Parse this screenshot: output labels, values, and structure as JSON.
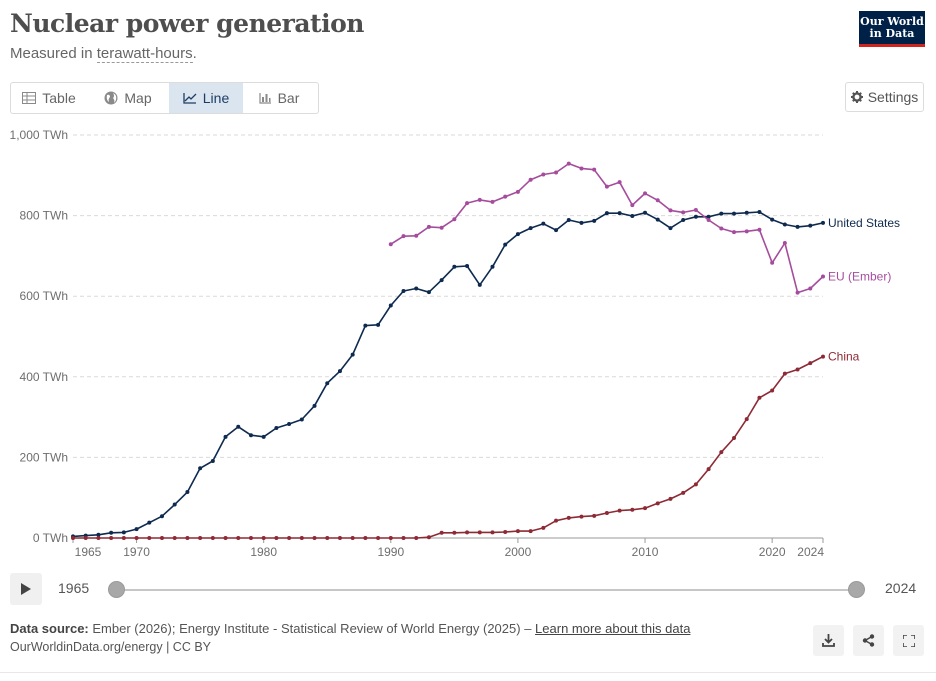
{
  "header": {
    "title": "Nuclear power generation",
    "subtitle_prefix": "Measured in ",
    "subtitle_unit": "terawatt-hours",
    "subtitle_suffix": ".",
    "logo_line1": "Our World",
    "logo_line2": "in Data"
  },
  "tabs": [
    {
      "label": "Table",
      "icon": "table-icon"
    },
    {
      "label": "Map",
      "icon": "globe-icon"
    },
    {
      "label": "Line",
      "icon": "line-chart-icon",
      "active": true
    },
    {
      "label": "Bar",
      "icon": "bar-chart-icon"
    }
  ],
  "settings_label": "Settings",
  "timeline": {
    "start_label": "1965",
    "end_label": "2024"
  },
  "footer": {
    "source_label": "Data source:",
    "source_text": " Ember (2026); Energy Institute - Statistical Review of World Energy (2025) – ",
    "learn_more": "Learn more about this data",
    "line2": "OurWorldinData.org/energy | CC BY"
  },
  "chart_data": {
    "type": "line",
    "title": "Nuclear power generation",
    "subtitle": "Measured in terawatt-hours.",
    "xlim": [
      1965,
      2024
    ],
    "ylim": [
      0,
      1000
    ],
    "y_ticks": [
      {
        "value": 0,
        "label": "0 TWh"
      },
      {
        "value": 200,
        "label": "200 TWh"
      },
      {
        "value": 400,
        "label": "400 TWh"
      },
      {
        "value": 600,
        "label": "600 TWh"
      },
      {
        "value": 800,
        "label": "800 TWh"
      },
      {
        "value": 1000,
        "label": "1,000 TWh"
      }
    ],
    "x_ticks": [
      1965,
      1970,
      1980,
      1990,
      2000,
      2010,
      2020,
      2024
    ],
    "grid": true,
    "legend": "inline labels at line ends",
    "series": [
      {
        "name": "United States",
        "color": "#0e2a4f",
        "x": [
          1965,
          1966,
          1967,
          1968,
          1969,
          1970,
          1971,
          1972,
          1973,
          1974,
          1975,
          1976,
          1977,
          1978,
          1979,
          1980,
          1981,
          1982,
          1983,
          1984,
          1985,
          1986,
          1987,
          1988,
          1989,
          1990,
          1991,
          1992,
          1993,
          1994,
          1995,
          1996,
          1997,
          1998,
          1999,
          2000,
          2001,
          2002,
          2003,
          2004,
          2005,
          2006,
          2007,
          2008,
          2009,
          2010,
          2011,
          2012,
          2013,
          2014,
          2015,
          2016,
          2017,
          2018,
          2019,
          2020,
          2021,
          2022,
          2023,
          2024
        ],
        "y": [
          4,
          6,
          8,
          13,
          14,
          22,
          38,
          54,
          83,
          114,
          173,
          191,
          251,
          276,
          255,
          251,
          273,
          283,
          294,
          328,
          384,
          414,
          455,
          527,
          529,
          577,
          613,
          619,
          610,
          640,
          673,
          675,
          628,
          673,
          728,
          754,
          769,
          780,
          764,
          789,
          782,
          787,
          806,
          806,
          799,
          807,
          790,
          769,
          789,
          797,
          797,
          805,
          805,
          807,
          809,
          790,
          778,
          772,
          775,
          782
        ]
      },
      {
        "name": "EU (Ember)",
        "color": "#a54c9d",
        "x": [
          1990,
          1991,
          1992,
          1993,
          1994,
          1995,
          1996,
          1997,
          1998,
          1999,
          2000,
          2001,
          2002,
          2003,
          2004,
          2005,
          2006,
          2007,
          2008,
          2009,
          2010,
          2011,
          2012,
          2013,
          2014,
          2015,
          2016,
          2017,
          2018,
          2019,
          2020,
          2021,
          2022,
          2023,
          2024
        ],
        "y": [
          729,
          749,
          750,
          772,
          770,
          791,
          831,
          839,
          834,
          847,
          859,
          889,
          902,
          907,
          929,
          917,
          914,
          872,
          883,
          826,
          855,
          838,
          813,
          808,
          814,
          789,
          768,
          759,
          761,
          765,
          683,
          732,
          609,
          619,
          649
        ]
      },
      {
        "name": "China",
        "color": "#8d2a35",
        "x": [
          1965,
          1966,
          1967,
          1968,
          1969,
          1970,
          1971,
          1972,
          1973,
          1974,
          1975,
          1976,
          1977,
          1978,
          1979,
          1980,
          1981,
          1982,
          1983,
          1984,
          1985,
          1986,
          1987,
          1988,
          1989,
          1990,
          1991,
          1992,
          1993,
          1994,
          1995,
          1996,
          1997,
          1998,
          1999,
          2000,
          2001,
          2002,
          2003,
          2004,
          2005,
          2006,
          2007,
          2008,
          2009,
          2010,
          2011,
          2012,
          2013,
          2014,
          2015,
          2016,
          2017,
          2018,
          2019,
          2020,
          2021,
          2022,
          2023,
          2024
        ],
        "y": [
          0,
          0,
          0,
          0,
          0,
          0,
          0,
          0,
          0,
          0,
          0,
          0,
          0,
          0,
          0,
          0,
          0,
          0,
          0,
          0,
          0,
          0,
          0,
          0,
          0,
          0,
          0,
          0,
          2,
          13,
          13,
          14,
          14,
          14,
          15,
          17,
          17,
          25,
          43,
          50,
          53,
          55,
          62,
          68,
          70,
          74,
          86,
          97,
          112,
          133,
          171,
          213,
          248,
          295,
          348,
          366,
          408,
          418,
          434,
          450
        ]
      }
    ]
  }
}
